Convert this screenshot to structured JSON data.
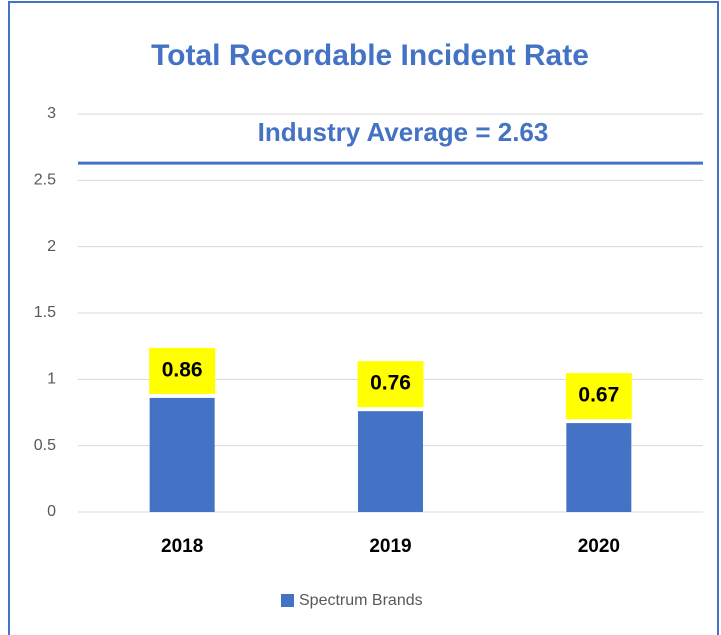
{
  "chart_data": {
    "type": "bar",
    "title": "Total Recordable Incident Rate",
    "categories": [
      "2018",
      "2019",
      "2020"
    ],
    "series": [
      {
        "name": "Spectrum Brands",
        "color": "#4472c4",
        "values": [
          0.86,
          0.76,
          0.67
        ]
      }
    ],
    "ylim": [
      0,
      3
    ],
    "yticks": [
      0,
      0.5,
      1,
      1.5,
      2,
      2.5,
      3
    ],
    "grid": true,
    "reference_line": {
      "value": 2.63,
      "label": "Industry Average = 2.63",
      "color": "#4472c4"
    },
    "value_label_background": "#ffff00",
    "legend": "bottom"
  }
}
